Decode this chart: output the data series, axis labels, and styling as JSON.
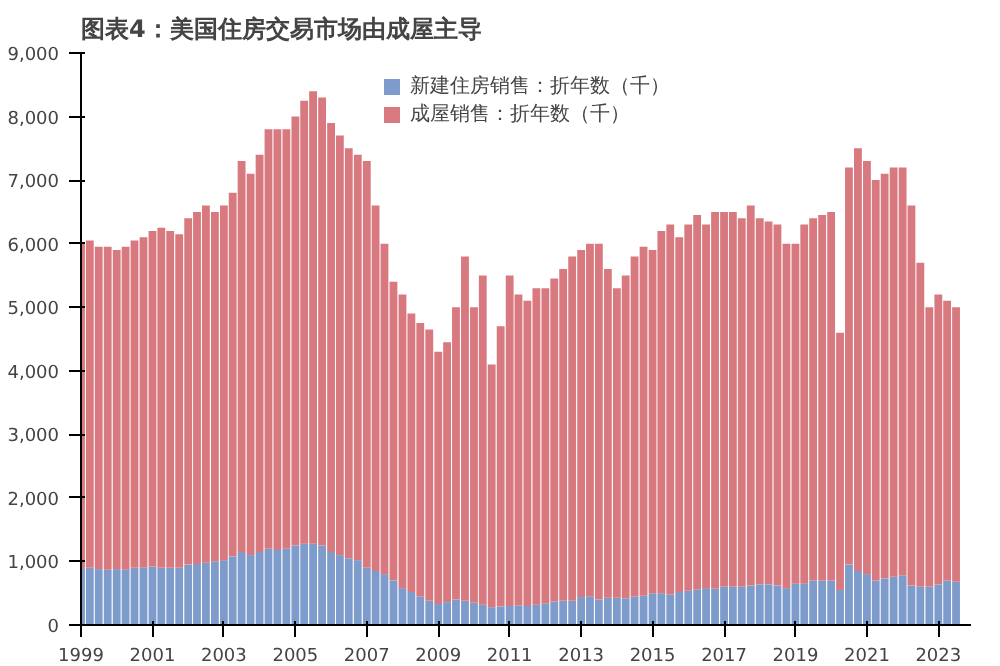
{
  "chart_data": {
    "type": "bar",
    "stacked": true,
    "title": "图表4：美国住房交易市场由成屋主导",
    "x": [
      "1999-01",
      "1999-04",
      "1999-07",
      "1999-10",
      "2000-01",
      "2000-04",
      "2000-07",
      "2000-10",
      "2001-01",
      "2001-04",
      "2001-07",
      "2001-10",
      "2002-01",
      "2002-04",
      "2002-07",
      "2002-10",
      "2003-01",
      "2003-04",
      "2003-07",
      "2003-10",
      "2004-01",
      "2004-04",
      "2004-07",
      "2004-10",
      "2005-01",
      "2005-04",
      "2005-07",
      "2005-10",
      "2006-01",
      "2006-04",
      "2006-07",
      "2006-10",
      "2007-01",
      "2007-04",
      "2007-07",
      "2007-10",
      "2008-01",
      "2008-04",
      "2008-07",
      "2008-10",
      "2009-01",
      "2009-04",
      "2009-07",
      "2009-10",
      "2010-01",
      "2010-04",
      "2010-07",
      "2010-10",
      "2011-01",
      "2011-04",
      "2011-07",
      "2011-10",
      "2012-01",
      "2012-04",
      "2012-07",
      "2012-10",
      "2013-01",
      "2013-04",
      "2013-07",
      "2013-10",
      "2014-01",
      "2014-04",
      "2014-07",
      "2014-10",
      "2015-01",
      "2015-04",
      "2015-07",
      "2015-10",
      "2016-01",
      "2016-04",
      "2016-07",
      "2016-10",
      "2017-01",
      "2017-04",
      "2017-07",
      "2017-10",
      "2018-01",
      "2018-04",
      "2018-07",
      "2018-10",
      "2019-01",
      "2019-04",
      "2019-07",
      "2019-10",
      "2020-01",
      "2020-04",
      "2020-07",
      "2020-10",
      "2021-01",
      "2021-04",
      "2021-07",
      "2021-10",
      "2022-01",
      "2022-04",
      "2022-07",
      "2022-10",
      "2023-01",
      "2023-04",
      "2023-07"
    ],
    "series": [
      {
        "name": "新建住房销售：折年数（千）",
        "color": "#7e9ccb",
        "values": [
          880,
          900,
          880,
          870,
          880,
          870,
          900,
          900,
          920,
          900,
          900,
          900,
          950,
          960,
          980,
          1000,
          1020,
          1080,
          1150,
          1100,
          1150,
          1200,
          1180,
          1200,
          1250,
          1280,
          1280,
          1250,
          1150,
          1100,
          1050,
          1020,
          900,
          850,
          800,
          700,
          580,
          520,
          450,
          380,
          330,
          360,
          400,
          380,
          350,
          320,
          280,
          290,
          300,
          310,
          300,
          320,
          340,
          370,
          380,
          380,
          440,
          450,
          400,
          430,
          430,
          420,
          450,
          460,
          500,
          500,
          480,
          520,
          540,
          560,
          580,
          570,
          600,
          600,
          600,
          620,
          640,
          640,
          620,
          580,
          650,
          650,
          700,
          700,
          700,
          550,
          950,
          850,
          800,
          700,
          730,
          760,
          780,
          620,
          600,
          600,
          640,
          700,
          680
        ]
      },
      {
        "name": "成屋销售：折年数（千）",
        "color": "#d8787f",
        "values": [
          5120,
          5150,
          5070,
          5080,
          5020,
          5080,
          5150,
          5200,
          5280,
          5350,
          5300,
          5250,
          5450,
          5540,
          5620,
          5500,
          5580,
          5720,
          6150,
          6000,
          6250,
          6600,
          6620,
          6600,
          6750,
          6970,
          7120,
          7050,
          6750,
          6600,
          6450,
          6380,
          6400,
          5750,
          5200,
          4700,
          4620,
          4380,
          4300,
          4270,
          3970,
          4090,
          4600,
          5420,
          4650,
          5180,
          3820,
          4410,
          5200,
          4890,
          4800,
          4980,
          4960,
          5080,
          5220,
          5420,
          5460,
          5550,
          5600,
          5170,
          4870,
          5080,
          5350,
          5490,
          5400,
          5700,
          5820,
          5580,
          5760,
          5890,
          5720,
          5930,
          5900,
          5900,
          5800,
          5980,
          5760,
          5710,
          5680,
          5420,
          5350,
          5650,
          5700,
          5750,
          5800,
          4050,
          6250,
          6650,
          6500,
          6300,
          6370,
          6440,
          6420,
          5980,
          5100,
          4400,
          4560,
          4400,
          4320
        ]
      }
    ],
    "xlim": [
      "1999-01",
      "2023-12"
    ],
    "xticks": [
      "1999",
      "2001",
      "2003",
      "2005",
      "2007",
      "2009",
      "2011",
      "2013",
      "2015",
      "2017",
      "2019",
      "2021",
      "2023"
    ],
    "ylim": [
      0,
      9000
    ],
    "yticks": [
      {
        "value": 0,
        "label": "0"
      },
      {
        "value": 1000,
        "label": "1,000"
      },
      {
        "value": 2000,
        "label": "2,000"
      },
      {
        "value": 3000,
        "label": "3,000"
      },
      {
        "value": 4000,
        "label": "4,000"
      },
      {
        "value": 5000,
        "label": "5,000"
      },
      {
        "value": 6000,
        "label": "6,000"
      },
      {
        "value": 7000,
        "label": "7,000"
      },
      {
        "value": 8000,
        "label": "8,000"
      },
      {
        "value": 9000,
        "label": "9,000"
      }
    ],
    "grid": false,
    "legend": "top"
  }
}
